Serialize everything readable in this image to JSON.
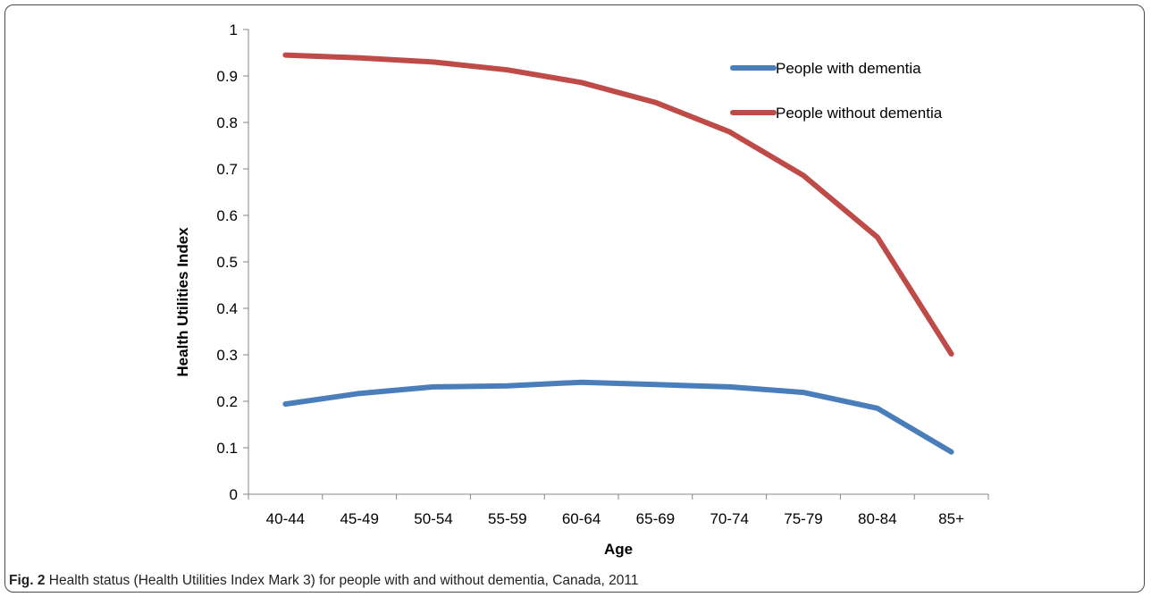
{
  "caption": {
    "label": "Fig. 2",
    "text": " Health status (Health Utilities Index Mark 3) for people with and without dementia, Canada, 2011"
  },
  "chart_data": {
    "type": "line",
    "title": "",
    "xlabel": "Age",
    "ylabel": "Health Utilities Index",
    "categories": [
      "40-44",
      "45-49",
      "50-54",
      "55-59",
      "60-64",
      "65-69",
      "70-74",
      "75-79",
      "80-84",
      "85+"
    ],
    "ylim": [
      0,
      1
    ],
    "yticks": [
      "0",
      "0.1",
      "0.2",
      "0.3",
      "0.4",
      "0.5",
      "0.6",
      "0.7",
      "0.8",
      "0.9",
      "1"
    ],
    "grid": false,
    "legend_position": "top-right",
    "series": [
      {
        "name": "People with dementia",
        "color": "#4a7ebb",
        "values": [
          0.194,
          0.217,
          0.231,
          0.233,
          0.241,
          0.236,
          0.231,
          0.219,
          0.185,
          0.091
        ]
      },
      {
        "name": "People without dementia",
        "color": "#be4b48",
        "values": [
          0.945,
          0.939,
          0.93,
          0.913,
          0.886,
          0.843,
          0.78,
          0.686,
          0.553,
          0.302
        ]
      }
    ]
  }
}
